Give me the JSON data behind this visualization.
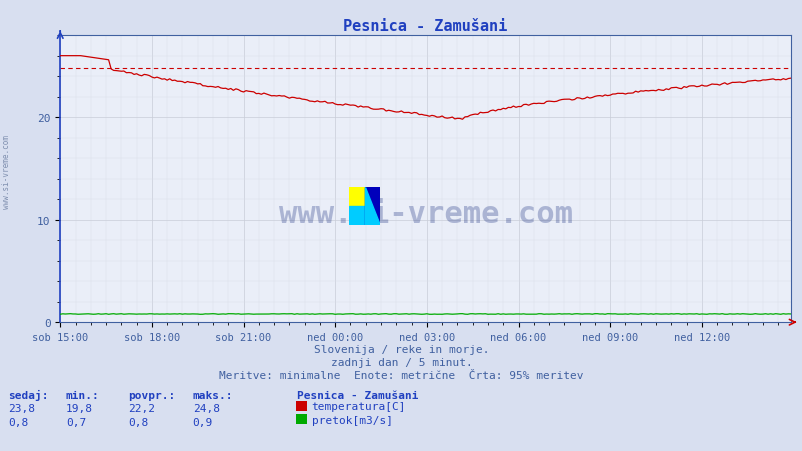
{
  "title": "Pesnica - Zamušani",
  "bg_color": "#d8dff0",
  "plot_bg_color": "#eaeef8",
  "grid_color_major": "#c8ccd8",
  "grid_color_minor": "#d8dce8",
  "xlabel_color": "#4060a0",
  "ylabel_color": "#4060a0",
  "title_color": "#2040c0",
  "xtick_labels": [
    "sob 15:00",
    "sob 18:00",
    "sob 21:00",
    "ned 00:00",
    "ned 03:00",
    "ned 06:00",
    "ned 09:00",
    "ned 12:00"
  ],
  "ylim": [
    0,
    28
  ],
  "xlim": [
    0,
    287
  ],
  "temp_color": "#cc0000",
  "flow_color": "#00aa00",
  "dashed_line_color": "#cc0000",
  "dashed_line_value": 24.8,
  "footer_line1": "Slovenija / reke in morje.",
  "footer_line2": "zadnji dan / 5 minut.",
  "footer_line3": "Meritve: minimalne  Enote: metrične  Črta: 95% meritev",
  "legend_title": "Pesnica - Zamušani",
  "legend_temp_label": "temperatura[C]",
  "legend_flow_label": "pretok[m3/s]",
  "stats_headers": [
    "sedaj:",
    "min.:",
    "povpr.:",
    "maks.:"
  ],
  "stats_temp": [
    "23,8",
    "19,8",
    "22,2",
    "24,8"
  ],
  "stats_flow": [
    "0,8",
    "0,7",
    "0,8",
    "0,9"
  ],
  "watermark": "www.si-vreme.com",
  "watermark_color": "#1a3080",
  "side_watermark_color": "#8090b0",
  "arrow_color_x": "#cc0000",
  "arrow_color_y": "#2040c0"
}
